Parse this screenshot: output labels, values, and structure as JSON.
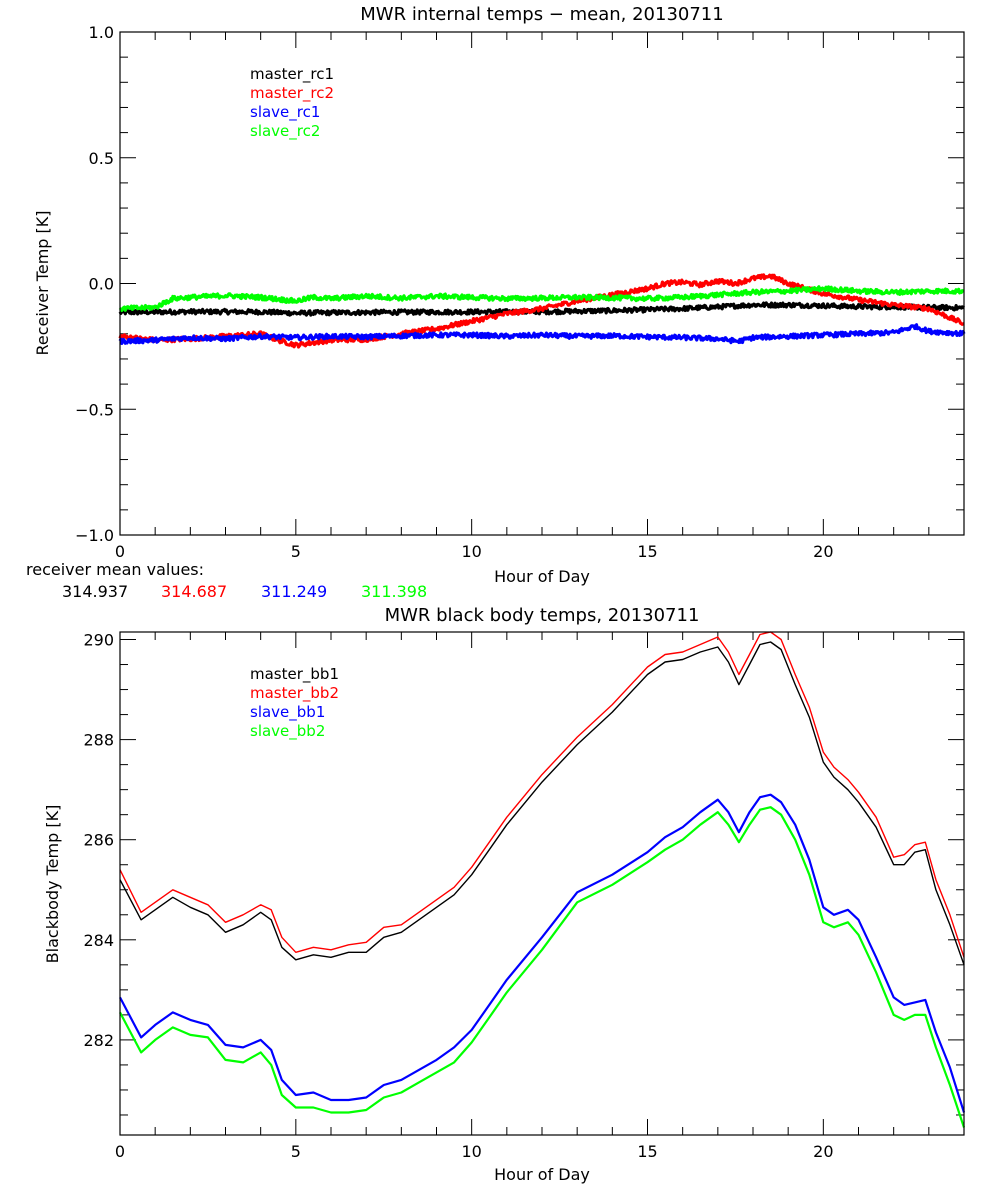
{
  "chart_data": [
    {
      "type": "line",
      "title": "MWR internal temps − mean, 20130711",
      "xlabel": "Hour of Day",
      "ylabel": "Receiver Temp [K]",
      "xlim": [
        0,
        24
      ],
      "ylim": [
        -1.0,
        1.0
      ],
      "xticks": [
        0,
        5,
        10,
        15,
        20
      ],
      "xtick_labels": [
        "0",
        "5",
        "10",
        "15",
        "20"
      ],
      "yticks": [
        -1.0,
        -0.5,
        0.0,
        0.5,
        1.0
      ],
      "ytick_labels": [
        "−1.0",
        "−0.5",
        "0.0",
        "0.5",
        "1.0"
      ],
      "x_minor_step": 1,
      "y_minor_step": 0.1,
      "grid": false,
      "legend_position": "top-left",
      "noise": true,
      "series": [
        {
          "name": "master_rc1",
          "color": "#000000",
          "x": [
            0,
            2,
            4,
            5,
            6,
            8,
            10,
            12,
            14,
            16,
            17,
            18,
            19,
            20,
            21,
            22,
            23,
            24
          ],
          "y": [
            -0.115,
            -0.112,
            -0.113,
            -0.118,
            -0.116,
            -0.114,
            -0.113,
            -0.112,
            -0.108,
            -0.1,
            -0.093,
            -0.085,
            -0.085,
            -0.088,
            -0.092,
            -0.093,
            -0.095,
            -0.097
          ]
        },
        {
          "name": "master_rc2",
          "color": "#ff0000",
          "x": [
            0,
            1,
            2,
            3,
            4,
            4.5,
            5,
            5.5,
            6,
            7,
            8,
            9,
            10,
            11,
            12,
            13,
            14,
            15,
            15.5,
            16,
            16.5,
            17,
            17.5,
            18,
            18.5,
            19,
            19.5,
            20,
            21,
            22,
            23,
            24
          ],
          "y": [
            -0.21,
            -0.225,
            -0.22,
            -0.21,
            -0.2,
            -0.225,
            -0.245,
            -0.235,
            -0.225,
            -0.222,
            -0.2,
            -0.18,
            -0.15,
            -0.12,
            -0.1,
            -0.07,
            -0.045,
            -0.02,
            0.0,
            0.005,
            -0.005,
            0.01,
            0.0,
            0.02,
            0.03,
            0.0,
            -0.02,
            -0.04,
            -0.065,
            -0.085,
            -0.1,
            -0.16
          ]
        },
        {
          "name": "slave_rc1",
          "color": "#0000ff",
          "x": [
            0,
            1,
            2,
            3,
            4,
            5,
            6,
            7,
            8,
            9,
            10,
            11,
            12,
            13,
            14,
            15,
            16,
            17,
            17.6,
            18,
            19,
            20,
            21,
            22,
            22.6,
            23,
            24
          ],
          "y": [
            -0.23,
            -0.225,
            -0.215,
            -0.22,
            -0.21,
            -0.215,
            -0.21,
            -0.212,
            -0.208,
            -0.205,
            -0.205,
            -0.21,
            -0.205,
            -0.21,
            -0.208,
            -0.212,
            -0.215,
            -0.22,
            -0.23,
            -0.215,
            -0.21,
            -0.205,
            -0.2,
            -0.195,
            -0.17,
            -0.19,
            -0.2
          ]
        },
        {
          "name": "slave_rc2",
          "color": "#00ff00",
          "x": [
            0,
            1,
            1.5,
            2,
            3,
            4,
            5,
            5.5,
            6,
            7,
            8,
            9,
            10,
            11,
            12,
            13,
            14,
            15,
            16,
            17,
            18,
            19,
            20,
            21,
            22,
            23,
            24
          ],
          "y": [
            -0.1,
            -0.095,
            -0.06,
            -0.055,
            -0.048,
            -0.055,
            -0.07,
            -0.055,
            -0.06,
            -0.05,
            -0.058,
            -0.05,
            -0.055,
            -0.06,
            -0.058,
            -0.055,
            -0.057,
            -0.06,
            -0.055,
            -0.045,
            -0.035,
            -0.03,
            -0.02,
            -0.03,
            -0.035,
            -0.03,
            -0.03
          ]
        }
      ],
      "annotation": {
        "label": "receiver mean values:",
        "values": [
          {
            "text": "314.937",
            "color": "#000000"
          },
          {
            "text": "314.687",
            "color": "#ff0000"
          },
          {
            "text": "311.249",
            "color": "#0000ff"
          },
          {
            "text": "311.398",
            "color": "#00ff00"
          }
        ]
      }
    },
    {
      "type": "line",
      "title": "MWR black body temps, 20130711",
      "xlabel": "Hour of Day",
      "ylabel": "Blackbody Temp [K]",
      "xlim": [
        0,
        24
      ],
      "ylim": [
        280.1,
        290.15
      ],
      "xticks": [
        0,
        5,
        10,
        15,
        20
      ],
      "xtick_labels": [
        "0",
        "5",
        "10",
        "15",
        "20"
      ],
      "yticks": [
        282,
        284,
        286,
        288,
        290
      ],
      "ytick_labels": [
        "282",
        "284",
        "286",
        "288",
        "290"
      ],
      "x_minor_step": 1,
      "y_minor_step": 0.5,
      "grid": false,
      "legend_position": "top-left",
      "noise": false,
      "series": [
        {
          "name": "master_bb1",
          "color": "#000000",
          "x": [
            0,
            0.6,
            1.0,
            1.5,
            2.0,
            2.5,
            3.0,
            3.5,
            4.0,
            4.3,
            4.6,
            5.0,
            5.5,
            6.0,
            6.5,
            7.0,
            7.5,
            8.0,
            8.5,
            9.0,
            9.5,
            10.0,
            10.5,
            11.0,
            12.0,
            13.0,
            14.0,
            15.0,
            15.5,
            16.0,
            16.5,
            17.0,
            17.3,
            17.6,
            17.9,
            18.2,
            18.5,
            18.8,
            19.2,
            19.6,
            20.0,
            20.3,
            20.7,
            21.0,
            21.5,
            22.0,
            22.3,
            22.6,
            22.9,
            23.2,
            23.6,
            24.0
          ],
          "y": [
            285.2,
            284.4,
            284.6,
            284.85,
            284.65,
            284.5,
            284.15,
            284.3,
            284.55,
            284.4,
            283.85,
            283.6,
            283.7,
            283.65,
            283.75,
            283.75,
            284.05,
            284.15,
            284.4,
            284.65,
            284.9,
            285.3,
            285.8,
            286.3,
            287.15,
            287.9,
            288.55,
            289.3,
            289.55,
            289.6,
            289.75,
            289.85,
            289.55,
            289.1,
            289.5,
            289.9,
            289.95,
            289.8,
            289.1,
            288.45,
            287.55,
            287.25,
            287.0,
            286.75,
            286.25,
            285.5,
            285.5,
            285.75,
            285.8,
            285.0,
            284.3,
            283.5
          ]
        },
        {
          "name": "master_bb2",
          "color": "#ff0000",
          "x": [
            0,
            0.6,
            1.0,
            1.5,
            2.0,
            2.5,
            3.0,
            3.5,
            4.0,
            4.3,
            4.6,
            5.0,
            5.5,
            6.0,
            6.5,
            7.0,
            7.5,
            8.0,
            8.5,
            9.0,
            9.5,
            10.0,
            10.5,
            11.0,
            12.0,
            13.0,
            14.0,
            15.0,
            15.5,
            16.0,
            16.5,
            17.0,
            17.3,
            17.6,
            17.9,
            18.2,
            18.5,
            18.8,
            19.2,
            19.6,
            20.0,
            20.3,
            20.7,
            21.0,
            21.5,
            22.0,
            22.3,
            22.6,
            22.9,
            23.2,
            23.6,
            24.0
          ],
          "y": [
            285.4,
            284.55,
            284.75,
            285.0,
            284.85,
            284.7,
            284.35,
            284.5,
            284.7,
            284.6,
            284.05,
            283.75,
            283.85,
            283.8,
            283.9,
            283.95,
            284.25,
            284.3,
            284.55,
            284.8,
            285.05,
            285.45,
            285.95,
            286.45,
            287.3,
            288.05,
            288.7,
            289.45,
            289.7,
            289.75,
            289.9,
            290.05,
            289.75,
            289.3,
            289.7,
            290.1,
            290.15,
            290.0,
            289.3,
            288.65,
            287.75,
            287.45,
            287.2,
            286.95,
            286.45,
            285.65,
            285.7,
            285.9,
            285.95,
            285.2,
            284.5,
            283.65
          ]
        },
        {
          "name": "slave_bb1",
          "color": "#0000ff",
          "x": [
            0,
            0.6,
            1.0,
            1.5,
            2.0,
            2.5,
            3.0,
            3.5,
            4.0,
            4.3,
            4.6,
            5.0,
            5.5,
            6.0,
            6.5,
            7.0,
            7.5,
            8.0,
            8.5,
            9.0,
            9.5,
            10.0,
            10.5,
            11.0,
            12.0,
            13.0,
            14.0,
            15.0,
            15.5,
            16.0,
            16.5,
            17.0,
            17.3,
            17.6,
            17.9,
            18.2,
            18.5,
            18.8,
            19.2,
            19.6,
            20.0,
            20.3,
            20.7,
            21.0,
            21.5,
            22.0,
            22.3,
            22.6,
            22.9,
            23.2,
            23.6,
            24.0
          ],
          "y": [
            282.85,
            282.05,
            282.3,
            282.55,
            282.4,
            282.3,
            281.9,
            281.85,
            282.0,
            281.8,
            281.2,
            280.9,
            280.95,
            280.8,
            280.8,
            280.85,
            281.1,
            281.2,
            281.4,
            281.6,
            281.85,
            282.2,
            282.7,
            283.2,
            284.05,
            284.95,
            285.3,
            285.75,
            286.05,
            286.25,
            286.55,
            286.8,
            286.55,
            286.15,
            286.55,
            286.85,
            286.9,
            286.75,
            286.3,
            285.6,
            284.65,
            284.5,
            284.6,
            284.4,
            283.65,
            282.85,
            282.7,
            282.75,
            282.8,
            282.15,
            281.45,
            280.55
          ]
        },
        {
          "name": "slave_bb2",
          "color": "#00ff00",
          "x": [
            0,
            0.6,
            1.0,
            1.5,
            2.0,
            2.5,
            3.0,
            3.5,
            4.0,
            4.3,
            4.6,
            5.0,
            5.5,
            6.0,
            6.5,
            7.0,
            7.5,
            8.0,
            8.5,
            9.0,
            9.5,
            10.0,
            10.5,
            11.0,
            12.0,
            13.0,
            14.0,
            15.0,
            15.5,
            16.0,
            16.5,
            17.0,
            17.3,
            17.6,
            17.9,
            18.2,
            18.5,
            18.8,
            19.2,
            19.6,
            20.0,
            20.3,
            20.7,
            21.0,
            21.5,
            22.0,
            22.3,
            22.6,
            22.9,
            23.2,
            23.6,
            24.0
          ],
          "y": [
            282.55,
            281.75,
            282.0,
            282.25,
            282.1,
            282.05,
            281.6,
            281.55,
            281.75,
            281.5,
            280.9,
            280.65,
            280.65,
            280.55,
            280.55,
            280.6,
            280.85,
            280.95,
            281.15,
            281.35,
            281.55,
            281.95,
            282.45,
            282.95,
            283.8,
            284.75,
            285.1,
            285.55,
            285.8,
            286.0,
            286.3,
            286.55,
            286.3,
            285.95,
            286.3,
            286.6,
            286.65,
            286.5,
            286.0,
            285.3,
            284.35,
            284.25,
            284.35,
            284.1,
            283.35,
            282.5,
            282.4,
            282.5,
            282.5,
            281.85,
            281.1,
            280.25
          ]
        }
      ]
    }
  ]
}
